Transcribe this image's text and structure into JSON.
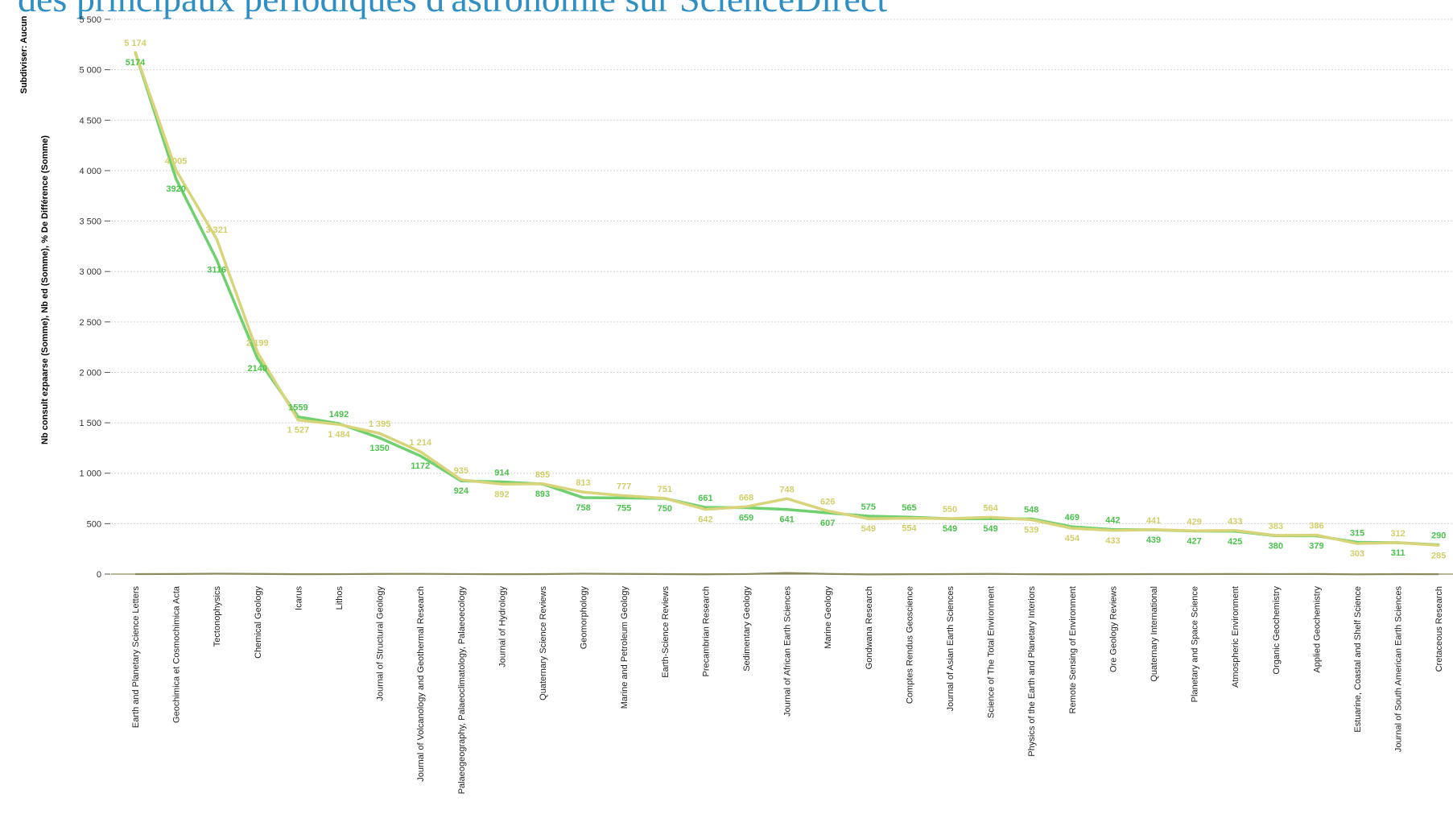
{
  "title": "des principaux périodiques d'astronomie sur ScienceDirect",
  "colors": {
    "title": "#2f8fc4",
    "series_a": "#6fd06f",
    "series_b": "#d8d47a",
    "subdivide": "#33336a",
    "zero_line": "#8a8a5a",
    "grid": "#d4d4d4"
  },
  "axis_title": {
    "subdivide": "Subdiviser: Aucun",
    "part_a": "Nb consult ezpaarse (Somme)",
    "sep1": ", ",
    "part_b": "Nb ed (Somme)",
    "sep2": ", ",
    "part_c": "% De Différence (Somme)"
  },
  "chart_data": {
    "type": "line",
    "ylim": [
      0,
      5500
    ],
    "yticks": [
      0,
      500,
      1000,
      1500,
      2000,
      2500,
      3000,
      3500,
      4000,
      4500,
      5000,
      5500
    ],
    "ytick_labels": [
      "0",
      "500",
      "1 000",
      "1 500",
      "2 000",
      "2 500",
      "3 000",
      "3 500",
      "4 000",
      "4 500",
      "5 000",
      "5 500"
    ],
    "grid": true,
    "categories": [
      "Earth and Planetary Science Letters",
      "Geochimica et Cosmochimica Acta",
      "Tectonophysics",
      "Chemical Geology",
      "Icarus",
      "Lithos",
      "Journal of Structural Geology",
      "Journal of Volcanology and Geothermal Research",
      "Palaeogeography, Palaeoclimatology, Palaeoecology",
      "Journal of Hydrology",
      "Quaternary Science Reviews",
      "Geomorphology",
      "Marine and Petroleum Geology",
      "Earth-Science Reviews",
      "Precambrian Research",
      "Sedimentary Geology",
      "Journal of African Earth Sciences",
      "Marine Geology",
      "Gondwana Research",
      "Comptes Rendus Geoscience",
      "Journal of Asian Earth Sciences",
      "Science of The Total Environment",
      "Physics of the Earth and Planetary Interiors",
      "Remote Sensing of Environment",
      "Ore Geology Reviews",
      "Quaternary International",
      "Planetary and Space Science",
      "Atmospheric Environment",
      "Organic Geochemistry",
      "Applied Geochemistry",
      "Estuarine, Coastal and Shelf Science",
      "Journal of South American Earth Sciences",
      "Cretaceous Research"
    ],
    "series": [
      {
        "name": "Nb consult ezpaarse (Somme)",
        "values": [
          5174,
          3920,
          3116,
          2140,
          1559,
          1492,
          1350,
          1172,
          924,
          914,
          893,
          758,
          755,
          750,
          661,
          659,
          641,
          607,
          575,
          565,
          549,
          549,
          548,
          469,
          442,
          439,
          427,
          425,
          380,
          379,
          315,
          311,
          290
        ],
        "labels": [
          "5174",
          "3920",
          "3116",
          "2140",
          "1559",
          "1492",
          "1350",
          "1172",
          "924",
          "914",
          "893",
          "758",
          "755",
          "750",
          "661",
          "659",
          "641",
          "607",
          "575",
          "565",
          "549",
          "549",
          "548",
          "469",
          "442",
          "439",
          "427",
          "425",
          "380",
          "379",
          "315",
          "311",
          "290"
        ]
      },
      {
        "name": "Nb ed (Somme)",
        "values": [
          5174,
          4005,
          3321,
          2199,
          1527,
          1484,
          1395,
          1214,
          935,
          892,
          895,
          813,
          777,
          751,
          642,
          668,
          748,
          626,
          549,
          554,
          550,
          564,
          539,
          454,
          433,
          441,
          429,
          433,
          383,
          386,
          303,
          312,
          285
        ],
        "labels": [
          "5 174",
          "4 005",
          "3 321",
          "2 199",
          "1 527",
          "1 484",
          "1 395",
          "1 214",
          "935",
          "892",
          "895",
          "813",
          "777",
          "751",
          "642",
          "668",
          "748",
          "626",
          "549",
          "554",
          "550",
          "564",
          "539",
          "454",
          "433",
          "441",
          "429",
          "433",
          "383",
          "386",
          "303",
          "312",
          "285"
        ]
      },
      {
        "name": "% De Différence (Somme)",
        "values": [
          0,
          2,
          7,
          3,
          -2,
          -1,
          3,
          4,
          1,
          -2,
          0,
          7,
          3,
          0,
          -3,
          1,
          17,
          3,
          -5,
          -2,
          0,
          3,
          -2,
          -3,
          -2,
          0,
          0,
          2,
          1,
          2,
          -4,
          0,
          -2
        ]
      }
    ]
  }
}
